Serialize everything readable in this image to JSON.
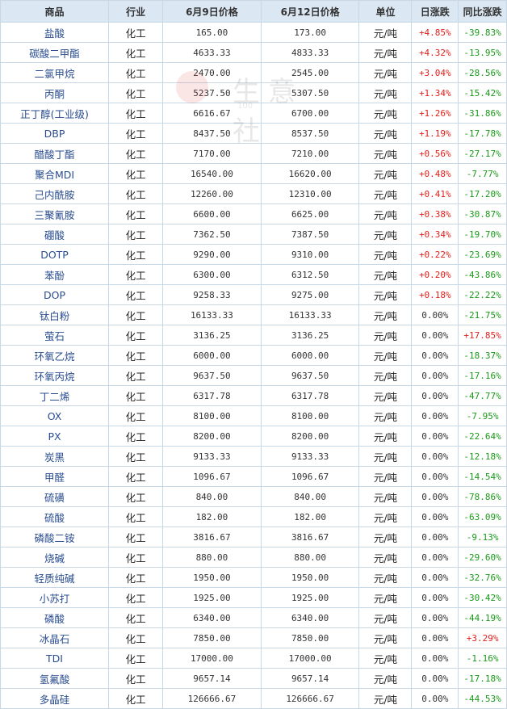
{
  "headers": [
    "商品",
    "行业",
    "6月9日价格",
    "6月12日价格",
    "单位",
    "日涨跌",
    "同比涨跌"
  ],
  "watermark": {
    "text": "生意社",
    "sub": "100"
  },
  "rows": [
    {
      "name": "盐酸",
      "industry": "化工",
      "p1": "165.00",
      "p2": "173.00",
      "unit": "元/吨",
      "day": "+4.85%",
      "yoy": "-39.83%"
    },
    {
      "name": "碳酸二甲酯",
      "industry": "化工",
      "p1": "4633.33",
      "p2": "4833.33",
      "unit": "元/吨",
      "day": "+4.32%",
      "yoy": "-13.95%"
    },
    {
      "name": "二氯甲烷",
      "industry": "化工",
      "p1": "2470.00",
      "p2": "2545.00",
      "unit": "元/吨",
      "day": "+3.04%",
      "yoy": "-28.56%"
    },
    {
      "name": "丙酮",
      "industry": "化工",
      "p1": "5237.50",
      "p2": "5307.50",
      "unit": "元/吨",
      "day": "+1.34%",
      "yoy": "-15.42%"
    },
    {
      "name": "正丁醇(工业级)",
      "industry": "化工",
      "p1": "6616.67",
      "p2": "6700.00",
      "unit": "元/吨",
      "day": "+1.26%",
      "yoy": "-31.86%"
    },
    {
      "name": "DBP",
      "industry": "化工",
      "p1": "8437.50",
      "p2": "8537.50",
      "unit": "元/吨",
      "day": "+1.19%",
      "yoy": "-17.78%"
    },
    {
      "name": "醋酸丁酯",
      "industry": "化工",
      "p1": "7170.00",
      "p2": "7210.00",
      "unit": "元/吨",
      "day": "+0.56%",
      "yoy": "-27.17%"
    },
    {
      "name": "聚合MDI",
      "industry": "化工",
      "p1": "16540.00",
      "p2": "16620.00",
      "unit": "元/吨",
      "day": "+0.48%",
      "yoy": "-7.77%"
    },
    {
      "name": "己内酰胺",
      "industry": "化工",
      "p1": "12260.00",
      "p2": "12310.00",
      "unit": "元/吨",
      "day": "+0.41%",
      "yoy": "-17.20%"
    },
    {
      "name": "三聚氰胺",
      "industry": "化工",
      "p1": "6600.00",
      "p2": "6625.00",
      "unit": "元/吨",
      "day": "+0.38%",
      "yoy": "-30.87%"
    },
    {
      "name": "硼酸",
      "industry": "化工",
      "p1": "7362.50",
      "p2": "7387.50",
      "unit": "元/吨",
      "day": "+0.34%",
      "yoy": "-19.70%"
    },
    {
      "name": "DOTP",
      "industry": "化工",
      "p1": "9290.00",
      "p2": "9310.00",
      "unit": "元/吨",
      "day": "+0.22%",
      "yoy": "-23.69%"
    },
    {
      "name": "苯酚",
      "industry": "化工",
      "p1": "6300.00",
      "p2": "6312.50",
      "unit": "元/吨",
      "day": "+0.20%",
      "yoy": "-43.86%"
    },
    {
      "name": "DOP",
      "industry": "化工",
      "p1": "9258.33",
      "p2": "9275.00",
      "unit": "元/吨",
      "day": "+0.18%",
      "yoy": "-22.22%"
    },
    {
      "name": "钛白粉",
      "industry": "化工",
      "p1": "16133.33",
      "p2": "16133.33",
      "unit": "元/吨",
      "day": "0.00%",
      "yoy": "-21.75%"
    },
    {
      "name": "萤石",
      "industry": "化工",
      "p1": "3136.25",
      "p2": "3136.25",
      "unit": "元/吨",
      "day": "0.00%",
      "yoy": "+17.85%"
    },
    {
      "name": "环氧乙烷",
      "industry": "化工",
      "p1": "6000.00",
      "p2": "6000.00",
      "unit": "元/吨",
      "day": "0.00%",
      "yoy": "-18.37%"
    },
    {
      "name": "环氧丙烷",
      "industry": "化工",
      "p1": "9637.50",
      "p2": "9637.50",
      "unit": "元/吨",
      "day": "0.00%",
      "yoy": "-17.16%"
    },
    {
      "name": "丁二烯",
      "industry": "化工",
      "p1": "6317.78",
      "p2": "6317.78",
      "unit": "元/吨",
      "day": "0.00%",
      "yoy": "-47.77%"
    },
    {
      "name": "OX",
      "industry": "化工",
      "p1": "8100.00",
      "p2": "8100.00",
      "unit": "元/吨",
      "day": "0.00%",
      "yoy": "-7.95%"
    },
    {
      "name": "PX",
      "industry": "化工",
      "p1": "8200.00",
      "p2": "8200.00",
      "unit": "元/吨",
      "day": "0.00%",
      "yoy": "-22.64%"
    },
    {
      "name": "炭黑",
      "industry": "化工",
      "p1": "9133.33",
      "p2": "9133.33",
      "unit": "元/吨",
      "day": "0.00%",
      "yoy": "-12.18%"
    },
    {
      "name": "甲醛",
      "industry": "化工",
      "p1": "1096.67",
      "p2": "1096.67",
      "unit": "元/吨",
      "day": "0.00%",
      "yoy": "-14.54%"
    },
    {
      "name": "硫磺",
      "industry": "化工",
      "p1": "840.00",
      "p2": "840.00",
      "unit": "元/吨",
      "day": "0.00%",
      "yoy": "-78.86%"
    },
    {
      "name": "硫酸",
      "industry": "化工",
      "p1": "182.00",
      "p2": "182.00",
      "unit": "元/吨",
      "day": "0.00%",
      "yoy": "-63.09%"
    },
    {
      "name": "磷酸二铵",
      "industry": "化工",
      "p1": "3816.67",
      "p2": "3816.67",
      "unit": "元/吨",
      "day": "0.00%",
      "yoy": "-9.13%"
    },
    {
      "name": "烧碱",
      "industry": "化工",
      "p1": "880.00",
      "p2": "880.00",
      "unit": "元/吨",
      "day": "0.00%",
      "yoy": "-29.60%"
    },
    {
      "name": "轻质纯碱",
      "industry": "化工",
      "p1": "1950.00",
      "p2": "1950.00",
      "unit": "元/吨",
      "day": "0.00%",
      "yoy": "-32.76%"
    },
    {
      "name": "小苏打",
      "industry": "化工",
      "p1": "1925.00",
      "p2": "1925.00",
      "unit": "元/吨",
      "day": "0.00%",
      "yoy": "-30.42%"
    },
    {
      "name": "磷酸",
      "industry": "化工",
      "p1": "6340.00",
      "p2": "6340.00",
      "unit": "元/吨",
      "day": "0.00%",
      "yoy": "-44.19%"
    },
    {
      "name": "冰晶石",
      "industry": "化工",
      "p1": "7850.00",
      "p2": "7850.00",
      "unit": "元/吨",
      "day": "0.00%",
      "yoy": "+3.29%"
    },
    {
      "name": "TDI",
      "industry": "化工",
      "p1": "17000.00",
      "p2": "17000.00",
      "unit": "元/吨",
      "day": "0.00%",
      "yoy": "-1.16%"
    },
    {
      "name": "氢氟酸",
      "industry": "化工",
      "p1": "9657.14",
      "p2": "9657.14",
      "unit": "元/吨",
      "day": "0.00%",
      "yoy": "-17.18%"
    },
    {
      "name": "多晶硅",
      "industry": "化工",
      "p1": "126666.67",
      "p2": "126666.67",
      "unit": "元/吨",
      "day": "0.00%",
      "yoy": "-44.53%"
    }
  ]
}
